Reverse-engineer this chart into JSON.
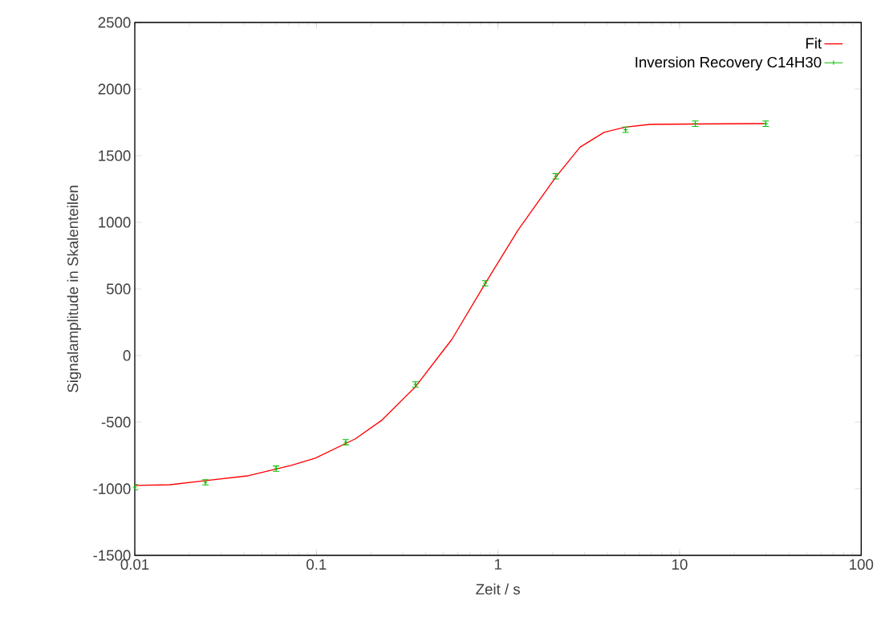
{
  "chart_data": {
    "type": "scatter",
    "xlabel": "Zeit / s",
    "ylabel": "Signalamplitude in Skalenteilen",
    "log": "x",
    "xlim": [
      0.01,
      100
    ],
    "ylim": [
      -1500,
      2500
    ],
    "xticks": [
      0.01,
      0.1,
      1,
      10,
      100
    ],
    "yticks": [
      -1500,
      -1000,
      -500,
      0,
      500,
      1000,
      1500,
      2000,
      2500
    ],
    "legend": "top right",
    "grid": false,
    "series": [
      {
        "name": "Fit",
        "type": "line",
        "color": "#ff0000",
        "marker": "none",
        "line_style": "solid",
        "x": [
          0.01,
          0.0156,
          0.0424,
          0.0727,
          0.0986,
          0.164,
          0.23,
          0.352,
          0.487,
          0.556,
          0.85,
          1.29,
          2.09,
          2.83,
          3.84,
          5.04,
          6.85,
          12.2,
          29.3
        ],
        "values": [
          -975,
          -970,
          -902,
          -825,
          -771,
          -625,
          -484,
          -233,
          18,
          119,
          540,
          942,
          1343,
          1564,
          1675,
          1715,
          1735,
          1738,
          1741
        ]
      },
      {
        "name": "Inversion Recovery C14H30",
        "type": "scatter",
        "color": "#00c000",
        "marker": "cross",
        "x": [
          0.01,
          0.0245,
          0.06,
          0.145,
          0.351,
          0.85,
          2.08,
          5.04,
          12.2,
          29.8
        ],
        "values": [
          -988,
          -952,
          -849,
          -651,
          -217,
          542,
          1345,
          1695,
          1740,
          1740
        ],
        "errors": [
          20,
          20,
          20,
          20,
          20,
          20,
          20,
          20,
          20,
          20
        ]
      }
    ]
  }
}
